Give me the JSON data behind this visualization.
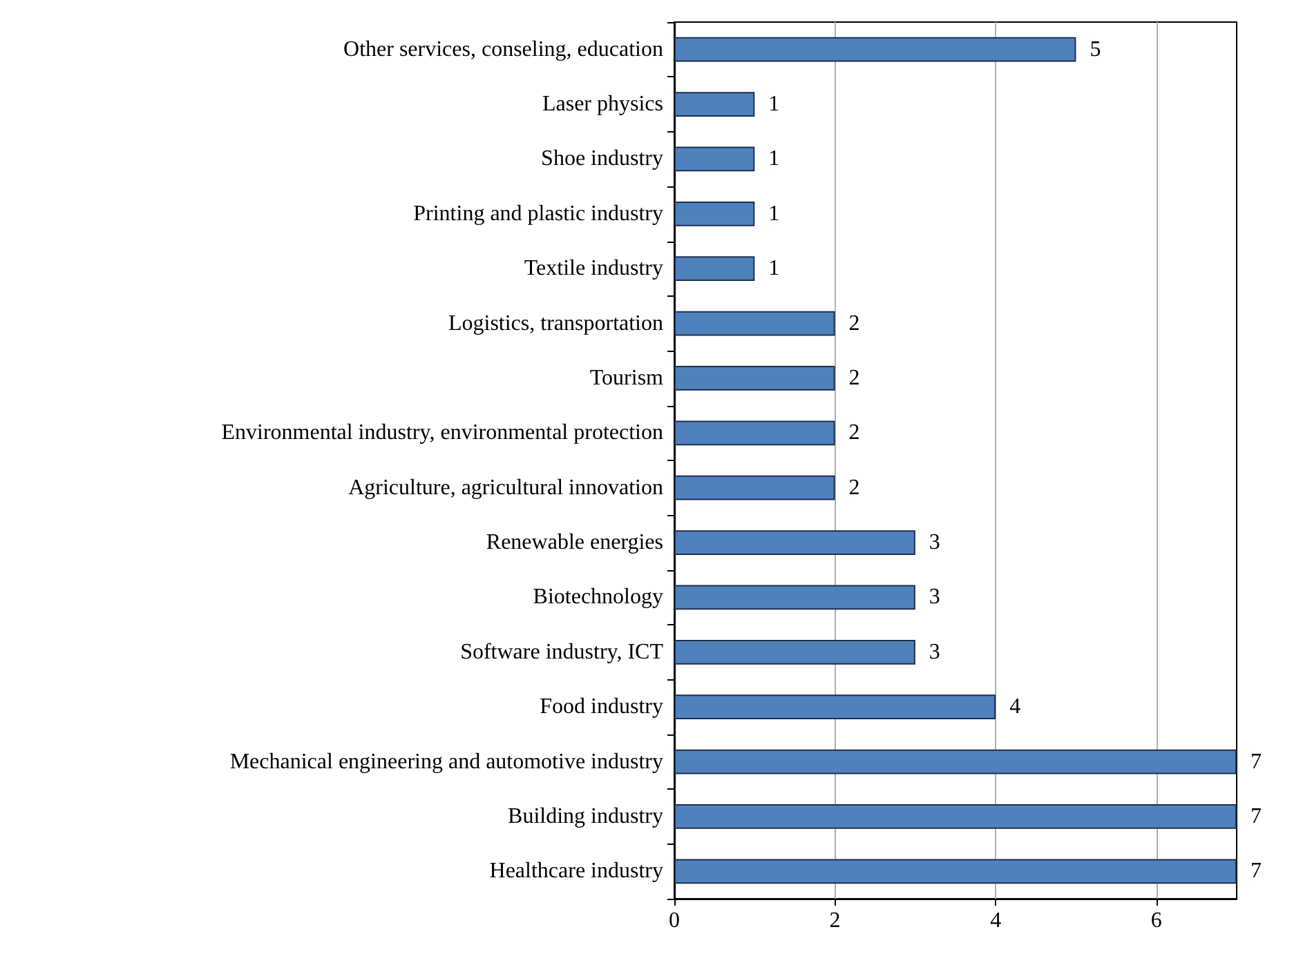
{
  "chart_data": {
    "type": "bar",
    "orientation": "horizontal",
    "categories": [
      "Other services, conseling, education",
      "Laser physics",
      "Shoe industry",
      "Printing and plastic industry",
      "Textile industry",
      "Logistics, transportation",
      "Tourism",
      "Environmental industry, environmental protection",
      "Agriculture, agricultural innovation",
      "Renewable energies",
      "Biotechnology",
      "Software industry, ICT",
      "Food industry",
      "Mechanical engineering and automotive industry",
      "Building industry",
      "Healthcare industry"
    ],
    "values": [
      5,
      1,
      1,
      1,
      1,
      2,
      2,
      2,
      2,
      3,
      3,
      3,
      4,
      7,
      7,
      7
    ],
    "color": "#4f81bd",
    "xlim": [
      0,
      7
    ],
    "xticks": [
      0,
      2,
      4,
      6
    ],
    "grid": "x",
    "data_labels": true
  }
}
